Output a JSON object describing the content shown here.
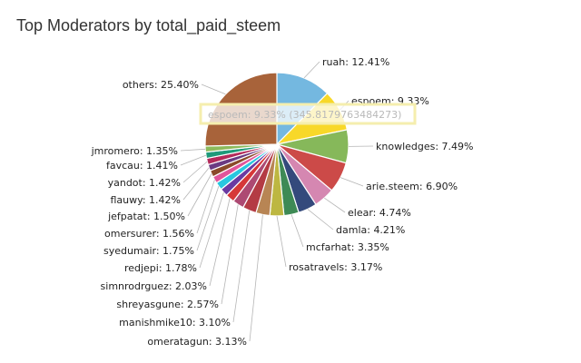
{
  "chart_data": {
    "type": "pie",
    "title": "Top Moderators by total_paid_steem",
    "slices": [
      {
        "label": "ruah",
        "value": 12.41,
        "text": "ruah: 12.41%",
        "color": "#74b8e0"
      },
      {
        "label": "espoem",
        "value": 9.33,
        "text": "espoem: 9.33%",
        "color": "#f8d829"
      },
      {
        "label": "knowledges",
        "value": 7.49,
        "text": "knowledges: 7.49%",
        "color": "#86b85a"
      },
      {
        "label": "arie.steem",
        "value": 6.9,
        "text": "arie.steem: 6.90%",
        "color": "#cc4a48"
      },
      {
        "label": "elear",
        "value": 4.74,
        "text": "elear: 4.74%",
        "color": "#d587b1"
      },
      {
        "label": "damla",
        "value": 4.21,
        "text": "damla: 4.21%",
        "color": "#344a7c"
      },
      {
        "label": "mcfarhat",
        "value": 3.35,
        "text": "mcfarhat: 3.35%",
        "color": "#3e8a55"
      },
      {
        "label": "rosatravels",
        "value": 3.17,
        "text": "rosatravels: 3.17%",
        "color": "#bdb741"
      },
      {
        "label": "omeratagun",
        "value": 3.13,
        "text": "omeratagun: 3.13%",
        "color": "#b88554"
      },
      {
        "label": "manishmike10",
        "value": 3.1,
        "text": "manishmike10: 3.10%",
        "color": "#b43b44"
      },
      {
        "label": "shreyasgune",
        "value": 2.57,
        "text": "shreyasgune: 2.57%",
        "color": "#ad4a73"
      },
      {
        "label": "simnrodrguez",
        "value": 2.03,
        "text": "simnrodrguez: 2.03%",
        "color": "#d63838"
      },
      {
        "label": "redjepi",
        "value": 1.78,
        "text": "redjepi: 1.78%",
        "color": "#6a3aa2"
      },
      {
        "label": "syedumair",
        "value": 1.75,
        "text": "syedumair: 1.75%",
        "color": "#28c7e0"
      },
      {
        "label": "omersurer",
        "value": 1.56,
        "text": "omersurer: 1.56%",
        "color": "#e0559a"
      },
      {
        "label": "jefpatat",
        "value": 1.5,
        "text": "jefpatat: 1.50%",
        "color": "#8b4a2a"
      },
      {
        "label": "flauwy",
        "value": 1.42,
        "text": "flauwy: 1.42%",
        "color": "#6b3a82"
      },
      {
        "label": "yandot",
        "value": 1.42,
        "text": "yandot: 1.42%",
        "color": "#b42a5a"
      },
      {
        "label": "favcau",
        "value": 1.41,
        "text": "favcau: 1.41%",
        "color": "#1e9a7a"
      },
      {
        "label": "jmromero",
        "value": 1.35,
        "text": "jmromero: 1.35%",
        "color": "#8cba5c"
      },
      {
        "label": "others",
        "value": 25.4,
        "text": "others: 25.40%",
        "color": "#a8633a"
      }
    ],
    "tooltip": {
      "text": "espoem: 9.33% (345.8179763484273)",
      "slice": "espoem"
    }
  }
}
